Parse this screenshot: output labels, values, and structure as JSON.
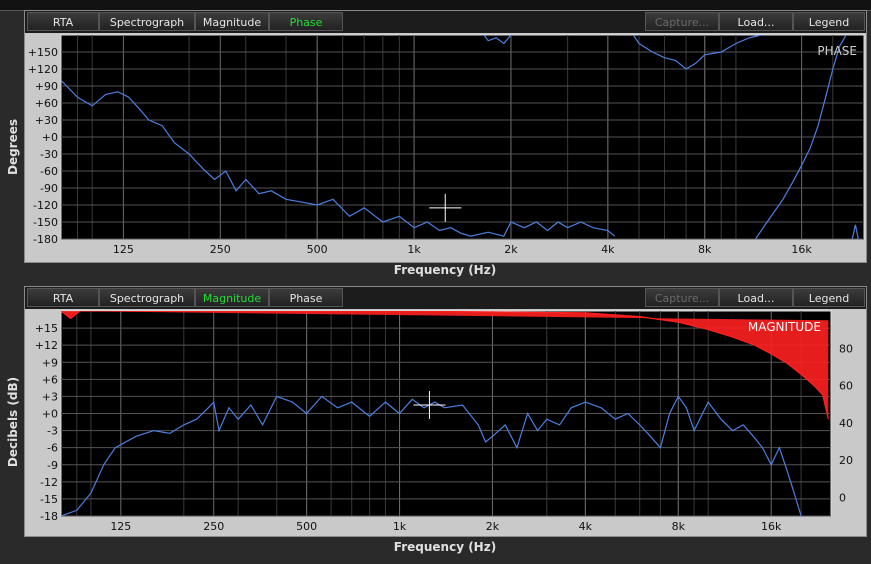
{
  "tabs": [
    "RTA",
    "Spectrograph",
    "Magnitude",
    "Phase",
    "Capture...",
    "Load...",
    "Legend"
  ],
  "chart_data": [
    {
      "type": "line",
      "title": "PHASE",
      "active_tab": "Phase",
      "xlabel": "Frequency (Hz)",
      "ylabel": "Degrees",
      "x_scale": "log",
      "xlim": [
        80,
        25000
      ],
      "ylim": [
        -180,
        180
      ],
      "x_ticks": [
        125,
        250,
        500,
        1000,
        2000,
        4000,
        8000,
        16000
      ],
      "x_tick_labels": [
        "125",
        "250",
        "500",
        "1k",
        "2k",
        "4k",
        "8k",
        "16k"
      ],
      "y_ticks": [
        150,
        120,
        90,
        60,
        30,
        0,
        -30,
        -60,
        -90,
        -120,
        -150,
        -180
      ],
      "y_tick_labels": [
        "+150",
        "+120",
        "+90",
        "+60",
        "+30",
        "+0",
        "-30",
        "-60",
        "-90",
        "-120",
        "-150",
        "-180"
      ],
      "grid": true,
      "series": [
        {
          "color": "#4d7fe0",
          "segments": [
            [
              [
                80,
                100
              ],
              [
                90,
                70
              ],
              [
                100,
                55
              ],
              [
                110,
                75
              ],
              [
                120,
                80
              ],
              [
                130,
                70
              ],
              [
                140,
                50
              ],
              [
                150,
                30
              ],
              [
                165,
                20
              ],
              [
                180,
                -10
              ],
              [
                200,
                -30
              ],
              [
                220,
                -55
              ],
              [
                240,
                -75
              ],
              [
                260,
                -60
              ],
              [
                280,
                -95
              ],
              [
                300,
                -75
              ],
              [
                330,
                -100
              ],
              [
                360,
                -95
              ],
              [
                400,
                -110
              ],
              [
                450,
                -115
              ],
              [
                500,
                -120
              ],
              [
                560,
                -110
              ],
              [
                630,
                -140
              ],
              [
                700,
                -125
              ],
              [
                800,
                -150
              ],
              [
                900,
                -140
              ],
              [
                1000,
                -160
              ],
              [
                1100,
                -150
              ],
              [
                1200,
                -165
              ],
              [
                1300,
                -160
              ],
              [
                1400,
                -170
              ],
              [
                1500,
                -175
              ],
              [
                1700,
                -168
              ],
              [
                1900,
                -175
              ],
              [
                2000,
                -150
              ],
              [
                2200,
                -160
              ],
              [
                2400,
                -150
              ],
              [
                2600,
                -165
              ],
              [
                2800,
                -150
              ],
              [
                3000,
                -160
              ],
              [
                3300,
                -150
              ],
              [
                3600,
                -160
              ],
              [
                4000,
                -165
              ],
              [
                4200,
                -175
              ]
            ],
            [
              [
                1650,
                180
              ],
              [
                1700,
                170
              ],
              [
                1800,
                175
              ],
              [
                1900,
                165
              ],
              [
                2000,
                180
              ]
            ],
            [
              [
                4800,
                180
              ],
              [
                5000,
                165
              ],
              [
                5500,
                150
              ],
              [
                6000,
                140
              ],
              [
                6500,
                135
              ],
              [
                7000,
                120
              ],
              [
                7500,
                130
              ],
              [
                8000,
                145
              ],
              [
                9000,
                150
              ],
              [
                10000,
                165
              ],
              [
                11000,
                175
              ],
              [
                12000,
                180
              ]
            ],
            [
              [
                11500,
                -180
              ],
              [
                12500,
                -150
              ],
              [
                14000,
                -110
              ],
              [
                15000,
                -80
              ],
              [
                16000,
                -50
              ],
              [
                17000,
                -20
              ],
              [
                18000,
                20
              ],
              [
                19000,
                70
              ],
              [
                20000,
                120
              ],
              [
                21000,
                160
              ],
              [
                22000,
                180
              ]
            ],
            [
              [
                23000,
                -180
              ],
              [
                23500,
                -155
              ],
              [
                24000,
                -180
              ]
            ]
          ]
        }
      ]
    },
    {
      "type": "line",
      "title": "MAGNITUDE",
      "active_tab": "Magnitude",
      "xlabel": "Frequency (Hz)",
      "ylabel": "Decibels (dB)",
      "x_scale": "log",
      "xlim": [
        80,
        25000
      ],
      "ylim": [
        -18,
        18
      ],
      "x_ticks": [
        125,
        250,
        500,
        1000,
        2000,
        4000,
        8000,
        16000
      ],
      "x_tick_labels": [
        "125",
        "250",
        "500",
        "1k",
        "2k",
        "4k",
        "8k",
        "16k"
      ],
      "y_ticks": [
        15,
        12,
        9,
        6,
        3,
        0,
        -3,
        -6,
        -9,
        -12,
        -15,
        -18
      ],
      "y_tick_labels": [
        "+15",
        "+12",
        "+9",
        "+6",
        "+3",
        "+0",
        "-3",
        "-6",
        "-9",
        "-12",
        "-15",
        "-18"
      ],
      "y2_ticks": [
        80,
        60,
        40,
        20,
        0
      ],
      "y2_tick_labels": [
        "80",
        "60",
        "40",
        "20",
        "0"
      ],
      "y2lim": [
        -10,
        100
      ],
      "grid": true,
      "series": [
        {
          "color": "#4d7fe0",
          "axis": "left",
          "points": [
            [
              80,
              -18
            ],
            [
              90,
              -17
            ],
            [
              100,
              -14
            ],
            [
              110,
              -9
            ],
            [
              120,
              -6
            ],
            [
              140,
              -4
            ],
            [
              160,
              -3
            ],
            [
              180,
              -3.5
            ],
            [
              200,
              -2
            ],
            [
              220,
              -1
            ],
            [
              240,
              1
            ],
            [
              250,
              2
            ],
            [
              260,
              -3
            ],
            [
              280,
              1
            ],
            [
              300,
              -1
            ],
            [
              330,
              1.5
            ],
            [
              360,
              -2
            ],
            [
              400,
              3
            ],
            [
              450,
              2
            ],
            [
              500,
              0
            ],
            [
              560,
              3
            ],
            [
              630,
              1
            ],
            [
              700,
              2
            ],
            [
              800,
              -0.5
            ],
            [
              900,
              2
            ],
            [
              1000,
              0
            ],
            [
              1100,
              2.5
            ],
            [
              1200,
              1
            ],
            [
              1300,
              2
            ],
            [
              1400,
              1
            ],
            [
              1600,
              1.5
            ],
            [
              1800,
              -2
            ],
            [
              1900,
              -5
            ],
            [
              2000,
              -4
            ],
            [
              2200,
              -2
            ],
            [
              2400,
              -6
            ],
            [
              2600,
              0
            ],
            [
              2800,
              -3
            ],
            [
              3000,
              -1
            ],
            [
              3300,
              -2
            ],
            [
              3600,
              1
            ],
            [
              4000,
              2
            ],
            [
              4500,
              1
            ],
            [
              5000,
              -1
            ],
            [
              5500,
              0
            ],
            [
              6000,
              -2
            ],
            [
              6500,
              -4
            ],
            [
              7000,
              -6
            ],
            [
              7500,
              0
            ],
            [
              8000,
              3
            ],
            [
              8500,
              1
            ],
            [
              9000,
              -3
            ],
            [
              10000,
              2
            ],
            [
              11000,
              -1
            ],
            [
              12000,
              -3
            ],
            [
              13000,
              -2
            ],
            [
              14000,
              -4
            ],
            [
              15000,
              -6
            ],
            [
              16000,
              -9
            ],
            [
              17000,
              -6
            ],
            [
              18000,
              -10
            ],
            [
              19000,
              -14
            ],
            [
              20000,
              -18
            ]
          ]
        },
        {
          "color": "#ff2020",
          "axis": "right",
          "points": [
            [
              80,
              100
            ],
            [
              86,
              96
            ],
            [
              92,
              100
            ],
            [
              1000,
              100
            ],
            [
              4000,
              99
            ],
            [
              6000,
              97
            ],
            [
              8000,
              94
            ],
            [
              10000,
              90
            ],
            [
              12000,
              86
            ],
            [
              14000,
              82
            ],
            [
              16000,
              77
            ],
            [
              18000,
              72
            ],
            [
              20000,
              66
            ],
            [
              22000,
              60
            ],
            [
              23500,
              55
            ],
            [
              24500,
              42
            ]
          ]
        }
      ]
    }
  ]
}
